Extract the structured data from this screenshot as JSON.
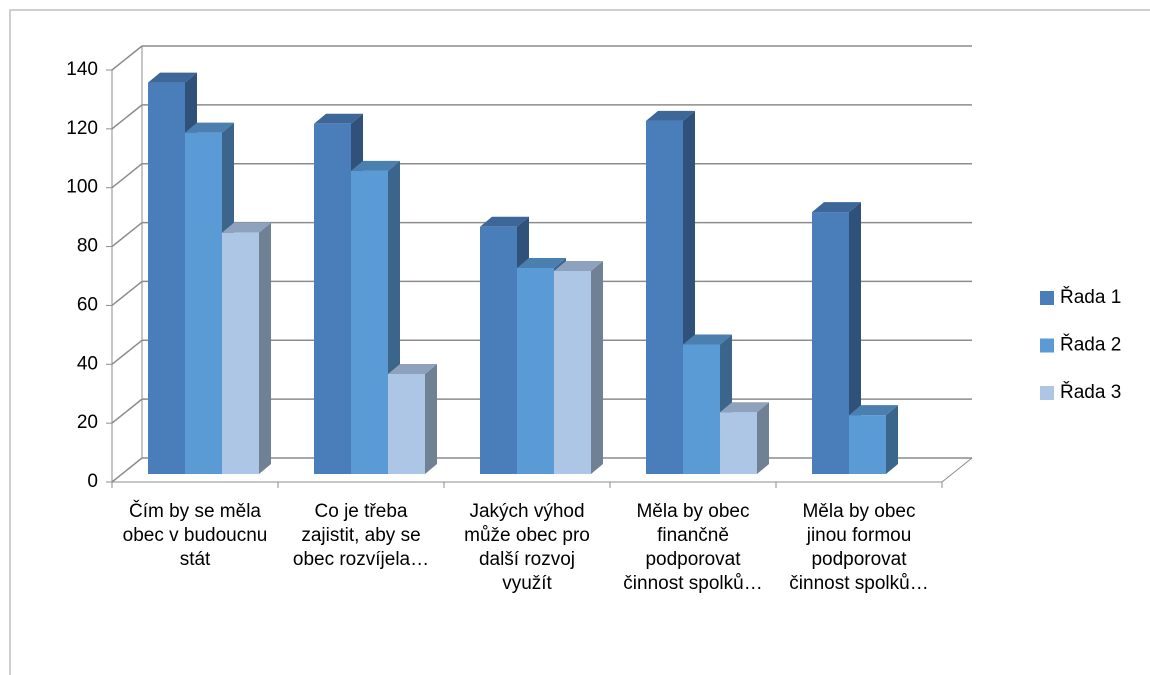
{
  "chart_data": {
    "type": "bar3d",
    "categories": [
      "Čím by se měla obec v budoucnu stát",
      "Co je třeba zajistit, aby se obec rozvíjela…",
      "Jakých výhod může obec pro další rozvoj využít",
      "Měla by obec finančně podporovat činnost spolků…",
      "Měla by obec jinou formou podporovat činnost spolků…"
    ],
    "series": [
      {
        "name": "Řada 1",
        "color": "#4a7ebb",
        "values": [
          133,
          119,
          84,
          120,
          89
        ]
      },
      {
        "name": "Řada 2",
        "color": "#5b9bd5",
        "values": [
          116,
          103,
          70,
          44,
          20
        ]
      },
      {
        "name": "Řada 3",
        "color": "#adc6e6",
        "values": [
          82,
          34,
          69,
          21,
          null
        ]
      }
    ],
    "ylim": [
      0,
      140
    ],
    "yticks": [
      0,
      20,
      40,
      60,
      80,
      100,
      120,
      140
    ],
    "grid": true,
    "legend": "right"
  }
}
